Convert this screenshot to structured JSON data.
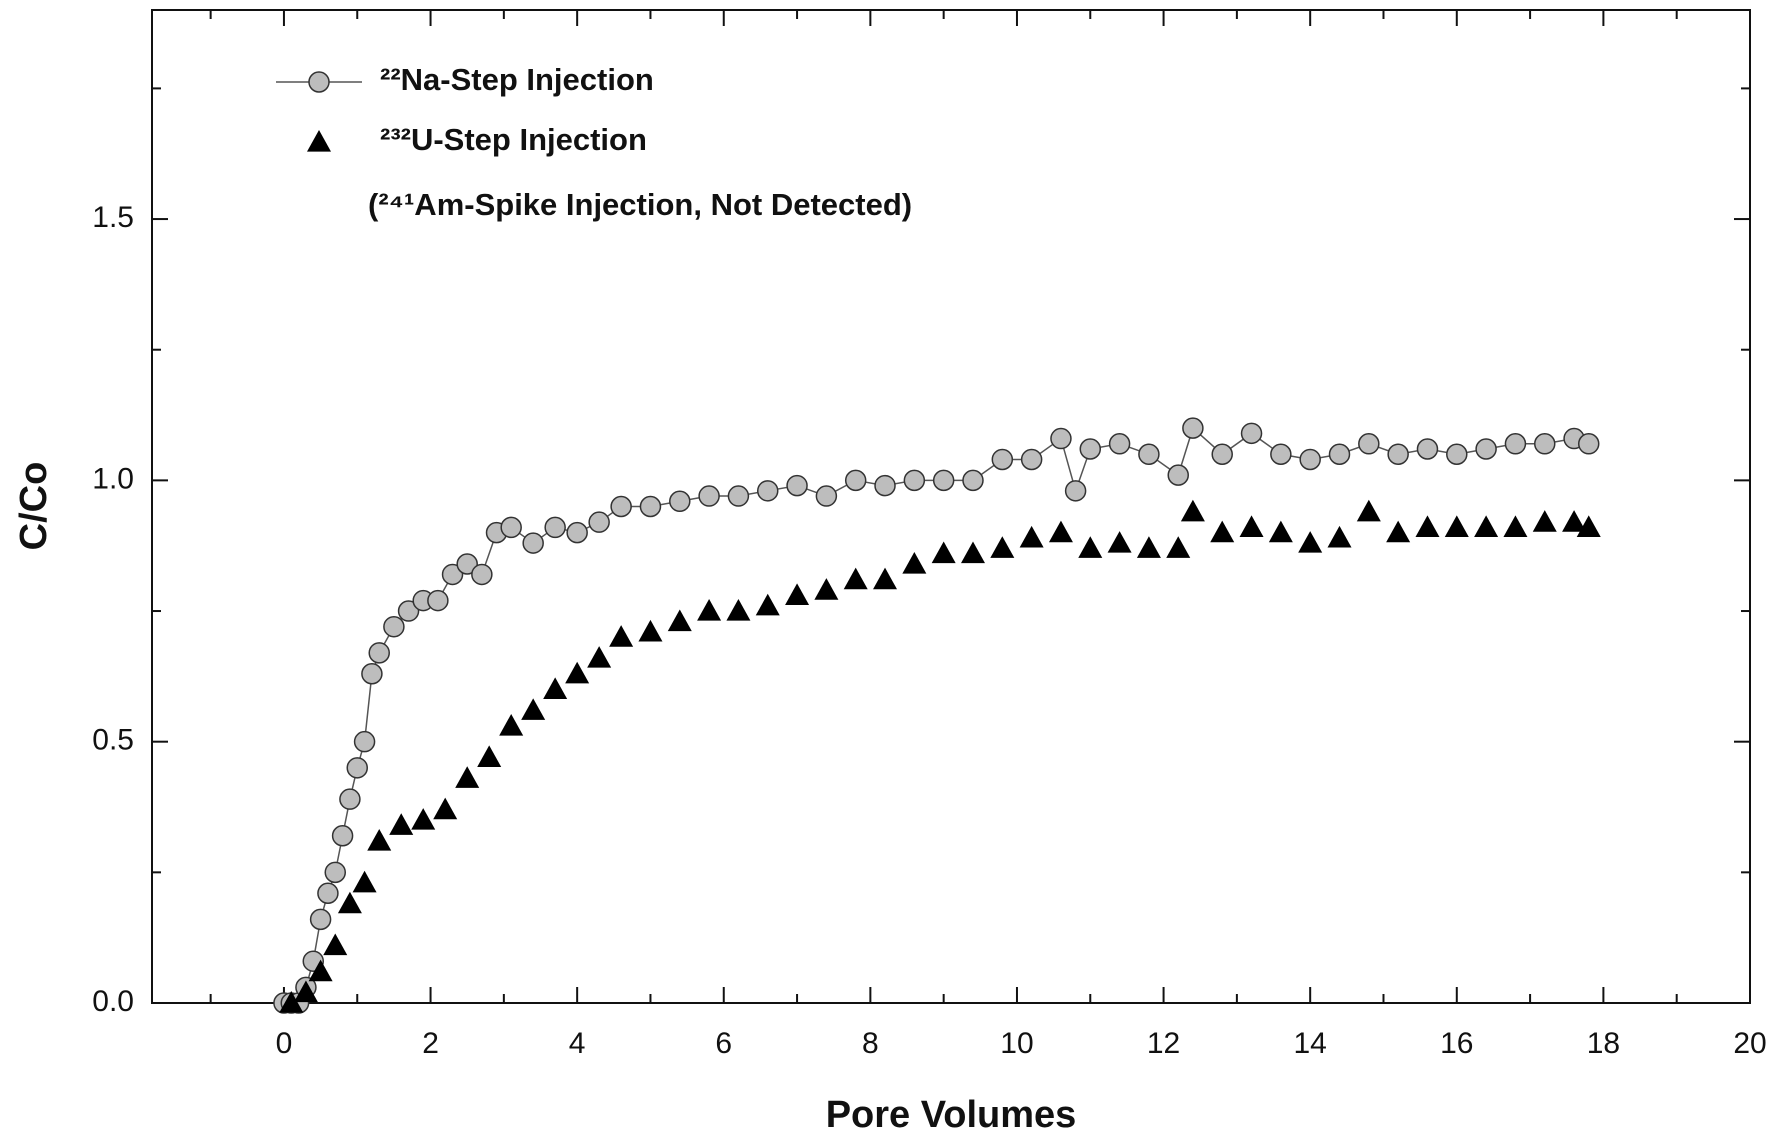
{
  "chart_data": {
    "type": "scatter",
    "x_label": "Pore Volumes",
    "y_label": "C/Co",
    "annotation": "(²⁴¹Am-Spike Injection, Not Detected)",
    "xlim": [
      -1.8,
      20
    ],
    "ylim": [
      0,
      1.9
    ],
    "xticks": [
      0,
      2,
      4,
      6,
      8,
      10,
      12,
      14,
      16,
      18,
      20
    ],
    "xminorticks": [
      -1,
      1,
      3,
      5,
      7,
      9,
      11,
      13,
      15,
      17,
      19
    ],
    "yticks": [
      {
        "value": 0,
        "label": "0.0"
      },
      {
        "value": 0.5,
        "label": "0.5"
      },
      {
        "value": 1,
        "label": "1.0"
      },
      {
        "value": 1.5,
        "label": "1.5"
      }
    ],
    "yminorticks": [
      0.25,
      0.75,
      1.25,
      1.75
    ],
    "series": [
      {
        "name": "²²Na-Step Injection",
        "color": "#bdbdbd",
        "marker": "circle",
        "line": true,
        "x": [
          0,
          0.1,
          0.2,
          0.3,
          0.4,
          0.5,
          0.6,
          0.7,
          0.8,
          0.9,
          1.0,
          1.1,
          1.2,
          1.3,
          1.5,
          1.7,
          1.9,
          2.1,
          2.3,
          2.5,
          2.7,
          2.9,
          3.1,
          3.4,
          3.7,
          4.0,
          4.3,
          4.6,
          5.0,
          5.4,
          5.8,
          6.2,
          6.6,
          7.0,
          7.4,
          7.8,
          8.2,
          8.6,
          9.0,
          9.4,
          9.8,
          10.2,
          10.6,
          10.8,
          11.0,
          11.4,
          11.8,
          12.2,
          12.4,
          12.8,
          13.2,
          13.6,
          14.0,
          14.4,
          14.8,
          15.2,
          15.6,
          16.0,
          16.4,
          16.8,
          17.2,
          17.6,
          17.8
        ],
        "values": [
          0,
          0,
          0,
          0.03,
          0.08,
          0.16,
          0.21,
          0.25,
          0.32,
          0.39,
          0.45,
          0.5,
          0.63,
          0.67,
          0.72,
          0.75,
          0.77,
          0.77,
          0.82,
          0.84,
          0.82,
          0.9,
          0.91,
          0.88,
          0.91,
          0.9,
          0.92,
          0.95,
          0.95,
          0.96,
          0.97,
          0.97,
          0.98,
          0.99,
          0.97,
          1.0,
          0.99,
          1.0,
          1.0,
          1.0,
          1.04,
          1.04,
          1.08,
          0.98,
          1.06,
          1.07,
          1.05,
          1.01,
          1.1,
          1.05,
          1.09,
          1.05,
          1.04,
          1.05,
          1.07,
          1.05,
          1.06,
          1.05,
          1.06,
          1.07,
          1.07,
          1.08,
          1.07
        ]
      },
      {
        "name": "²³²U-Step Injection",
        "color": "#000000",
        "marker": "triangle",
        "line": false,
        "x": [
          0.1,
          0.3,
          0.5,
          0.7,
          0.9,
          1.1,
          1.3,
          1.6,
          1.9,
          2.2,
          2.5,
          2.8,
          3.1,
          3.4,
          3.7,
          4.0,
          4.3,
          4.6,
          5.0,
          5.4,
          5.8,
          6.2,
          6.6,
          7.0,
          7.4,
          7.8,
          8.2,
          8.6,
          9.0,
          9.4,
          9.8,
          10.2,
          10.6,
          11.0,
          11.4,
          11.8,
          12.2,
          12.4,
          12.8,
          13.2,
          13.6,
          14.0,
          14.4,
          14.8,
          15.2,
          15.6,
          16.0,
          16.4,
          16.8,
          17.2,
          17.6,
          17.8
        ],
        "values": [
          0,
          0.02,
          0.06,
          0.11,
          0.19,
          0.23,
          0.31,
          0.34,
          0.35,
          0.37,
          0.43,
          0.47,
          0.53,
          0.56,
          0.6,
          0.63,
          0.66,
          0.7,
          0.71,
          0.73,
          0.75,
          0.75,
          0.76,
          0.78,
          0.79,
          0.81,
          0.81,
          0.84,
          0.86,
          0.86,
          0.87,
          0.89,
          0.9,
          0.87,
          0.88,
          0.87,
          0.87,
          0.94,
          0.9,
          0.91,
          0.9,
          0.88,
          0.89,
          0.94,
          0.9,
          0.91,
          0.91,
          0.91,
          0.91,
          0.92,
          0.92,
          0.91
        ]
      }
    ]
  }
}
